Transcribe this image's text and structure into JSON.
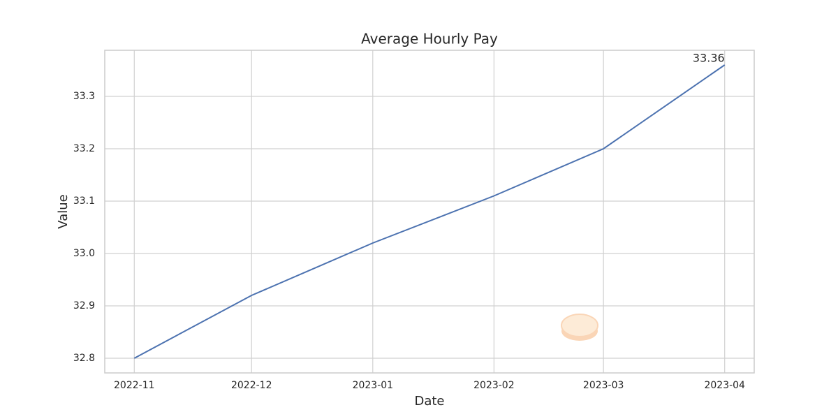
{
  "chart_data": {
    "type": "line",
    "title": "Average Hourly Pay",
    "xlabel": "Date",
    "ylabel": "Value",
    "x": [
      "2022-11",
      "2022-12",
      "2023-01",
      "2023-02",
      "2023-03",
      "2023-04"
    ],
    "values": [
      32.8,
      32.92,
      33.02,
      33.11,
      33.2,
      33.36
    ],
    "color": "#4c72b0",
    "ylim": [
      32.772,
      33.388
    ],
    "yticks": [
      32.8,
      32.9,
      {
        "value": 33,
        "label": "33.0"
      },
      33.1,
      33.2,
      33.3
    ],
    "xticks": [
      "2022-11",
      "2022-12",
      "2023-01",
      "2023-02",
      "2023-03",
      "2023-04"
    ],
    "grid": true,
    "label_last": true
  }
}
